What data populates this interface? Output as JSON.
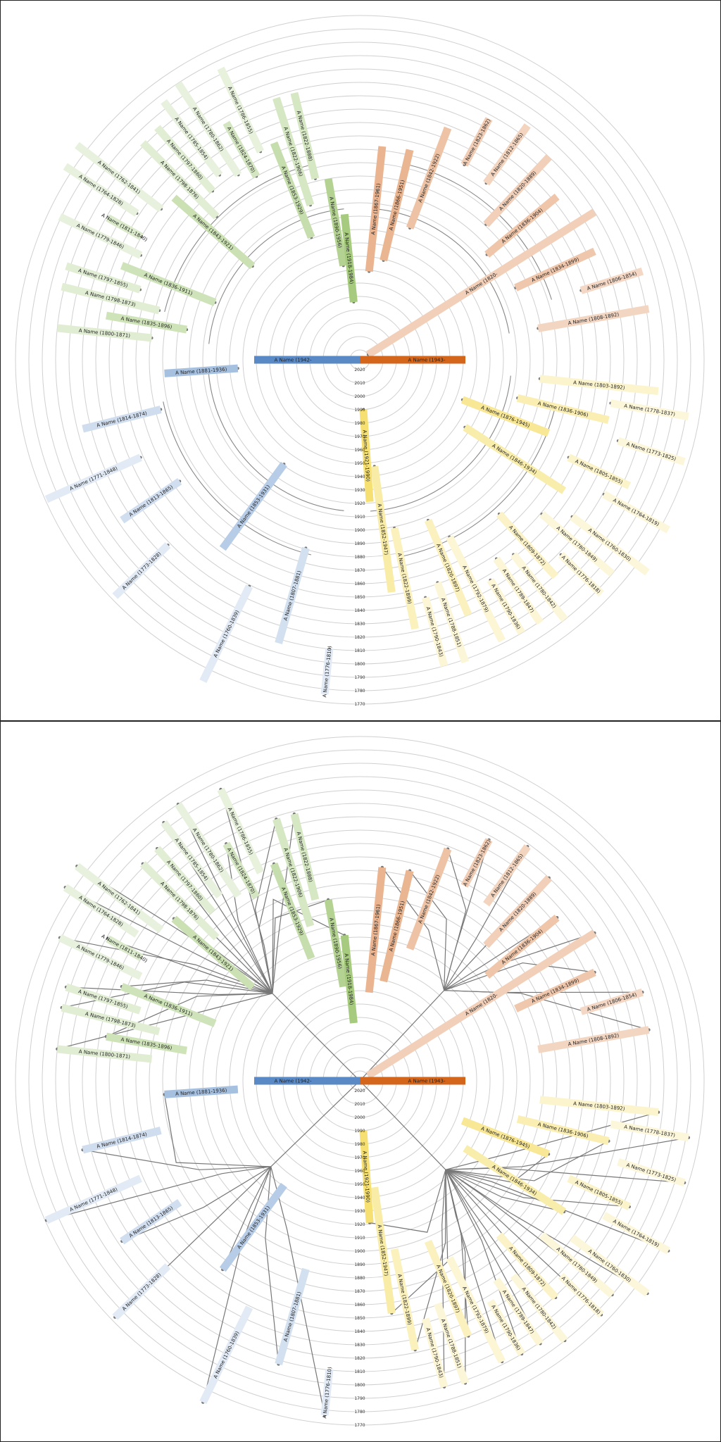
{
  "colors": {
    "orange": "#d4661c",
    "yellow": "#f1d232",
    "blue": "#5a8ac6",
    "green": "#7cb342",
    "ring": "#d0d0d0",
    "link": "#777777"
  },
  "chart_data": [
    {
      "type": "radial-timeline",
      "panel": "top",
      "link_style": "arcs",
      "ring_labels": [
        "2020",
        "2010",
        "2000",
        "1990",
        "1980",
        "1970",
        "1960",
        "1950",
        "1940",
        "1930",
        "1920",
        "1910",
        "1900",
        "1890",
        "1880",
        "1870",
        "1860",
        "1850",
        "1840",
        "1830",
        "1820",
        "1810",
        "1800",
        "1790",
        "1780",
        "1770"
      ],
      "root": [
        {
          "label": "A Name (1942-",
          "branch": "blue"
        },
        {
          "label": "A Name (1943-",
          "branch": "orange"
        }
      ],
      "entries": [
        {
          "label": "A Name (1800-1871)",
          "branch": "green"
        },
        {
          "label": "A Name (1835-1896)",
          "branch": "green"
        },
        {
          "label": "A Name (1798-1873)",
          "branch": "green"
        },
        {
          "label": "A Name (1797-1855)",
          "branch": "green"
        },
        {
          "label": "A Name (1836-1911)",
          "branch": "green"
        },
        {
          "label": "A Name (1779-1846)",
          "branch": "green"
        },
        {
          "label": "A Name (1811-1840)",
          "branch": "green"
        },
        {
          "label": "A Name (1764-1828)",
          "branch": "green"
        },
        {
          "label": "A Name (1762-1841)",
          "branch": "green"
        },
        {
          "label": "A Name (1843-1921)",
          "branch": "green"
        },
        {
          "label": "A Name (1798-1876)",
          "branch": "green"
        },
        {
          "label": "A Name (1797-1860)",
          "branch": "green"
        },
        {
          "label": "A Name (1785-1854)",
          "branch": "green"
        },
        {
          "label": "A Name (1780-1862)",
          "branch": "green"
        },
        {
          "label": "A Name (1824-1870)",
          "branch": "green"
        },
        {
          "label": "A Name (1786-1855)",
          "branch": "green"
        },
        {
          "label": "A Name (1853-1929)",
          "branch": "green"
        },
        {
          "label": "A Name (1822-1906)",
          "branch": "green"
        },
        {
          "label": "A Name (1822-1888)",
          "branch": "green"
        },
        {
          "label": "A Name (1890-1956)",
          "branch": "green"
        },
        {
          "label": "A Name (1918-1984)",
          "branch": "green"
        },
        {
          "label": "A Name (1867-1961)",
          "branch": "orange"
        },
        {
          "label": "A Name (1866-1951)",
          "branch": "orange"
        },
        {
          "label": "A Name (1842-1922)",
          "branch": "orange"
        },
        {
          "label": "A Name (1823-1862)",
          "branch": "orange"
        },
        {
          "label": "A Name (1812-1865)",
          "branch": "orange"
        },
        {
          "label": "A Name (1820-1889)",
          "branch": "orange"
        },
        {
          "label": "A Name (1836-1904)",
          "branch": "orange"
        },
        {
          "label": "A Name (1820-",
          "branch": "orange"
        },
        {
          "label": "A Name (1834-1899)",
          "branch": "orange"
        },
        {
          "label": "A Name (1806-1854)",
          "branch": "orange"
        },
        {
          "label": "A Name (1808-1892)",
          "branch": "orange"
        },
        {
          "label": "A Name (1803-1892)",
          "branch": "yellow"
        },
        {
          "label": "A Name (1778-1837)",
          "branch": "yellow"
        },
        {
          "label": "A Name (1836-1906)",
          "branch": "yellow"
        },
        {
          "label": "A Name (1773-1825)",
          "branch": "yellow"
        },
        {
          "label": "A Name (1876-1945)",
          "branch": "yellow"
        },
        {
          "label": "A Name (1805-1855)",
          "branch": "yellow"
        },
        {
          "label": "A Name (1764-1819)",
          "branch": "yellow"
        },
        {
          "label": "A Name (1846-1934)",
          "branch": "yellow"
        },
        {
          "label": "A Name (1760-1830)",
          "branch": "yellow"
        },
        {
          "label": "A Name (1780-1849)",
          "branch": "yellow"
        },
        {
          "label": "A Name (1776-1818)",
          "branch": "yellow"
        },
        {
          "label": "A Name (1809-1872)",
          "branch": "yellow"
        },
        {
          "label": "A Name (1780-1842)",
          "branch": "yellow"
        },
        {
          "label": "A Name (1789-1847)",
          "branch": "yellow"
        },
        {
          "label": "A Name (1790-1836)",
          "branch": "yellow"
        },
        {
          "label": "A Name (1792-1879)",
          "branch": "yellow"
        },
        {
          "label": "A Name (1820-1897)",
          "branch": "yellow"
        },
        {
          "label": "A Name (1788-1851)",
          "branch": "yellow"
        },
        {
          "label": "A Name (1790-1843)",
          "branch": "yellow"
        },
        {
          "label": "A Name (1822-1899)",
          "branch": "yellow"
        },
        {
          "label": "A Name (1852-1947)",
          "branch": "yellow"
        },
        {
          "label": "A Name (1921-1990)",
          "branch": "yellow"
        },
        {
          "label": "A Name (1776-1810)",
          "branch": "blue"
        },
        {
          "label": "A Name (1807-1881)",
          "branch": "blue"
        },
        {
          "label": "A Name (1760-1839)",
          "branch": "blue"
        },
        {
          "label": "A Name (1853-1931)",
          "branch": "blue"
        },
        {
          "label": "A Name (1773-1828)",
          "branch": "blue"
        },
        {
          "label": "A Name (1813-1865)",
          "branch": "blue"
        },
        {
          "label": "A Name (1771-1848)",
          "branch": "blue"
        },
        {
          "label": "A Name (1814-1874)",
          "branch": "blue"
        },
        {
          "label": "A Name (1881-1936)",
          "branch": "blue"
        }
      ]
    },
    {
      "type": "radial-timeline",
      "panel": "bottom",
      "link_style": "straight",
      "ring_labels": [
        "2020",
        "2010",
        "2000",
        "1990",
        "1980",
        "1970",
        "1960",
        "1950",
        "1940",
        "1930",
        "1920",
        "1910",
        "1900",
        "1890",
        "1880",
        "1870",
        "1860",
        "1850",
        "1840",
        "1830",
        "1820",
        "1810",
        "1800",
        "1790",
        "1780",
        "1770"
      ],
      "root": [
        {
          "label": "A Name (1942-",
          "branch": "blue"
        },
        {
          "label": "A Name (1943-",
          "branch": "orange"
        }
      ],
      "entries": [
        {
          "label": "A Name (1800-1871)",
          "branch": "green"
        },
        {
          "label": "A Name (1835-1896)",
          "branch": "green"
        },
        {
          "label": "A Name (1798-1873)",
          "branch": "green"
        },
        {
          "label": "A Name (1797-1855)",
          "branch": "green"
        },
        {
          "label": "A Name (1836-1911)",
          "branch": "green"
        },
        {
          "label": "A Name (1779-1846)",
          "branch": "green"
        },
        {
          "label": "A Name (1811-1840)",
          "branch": "green"
        },
        {
          "label": "A Name (1764-1828)",
          "branch": "green"
        },
        {
          "label": "A Name (1762-1841)",
          "branch": "green"
        },
        {
          "label": "A Name (1843-1921)",
          "branch": "green"
        },
        {
          "label": "A Name (1798-1876)",
          "branch": "green"
        },
        {
          "label": "A Name (1797-1860)",
          "branch": "green"
        },
        {
          "label": "A Name (1785-1854)",
          "branch": "green"
        },
        {
          "label": "A Name (1780-1862)",
          "branch": "green"
        },
        {
          "label": "A Name (1824-1870)",
          "branch": "green"
        },
        {
          "label": "A Name (1786-1855)",
          "branch": "green"
        },
        {
          "label": "A Name (1853-1929)",
          "branch": "green"
        },
        {
          "label": "A Name (1822-1906)",
          "branch": "green"
        },
        {
          "label": "A Name (1822-1888)",
          "branch": "green"
        },
        {
          "label": "A Name (1890-1956)",
          "branch": "green"
        },
        {
          "label": "A Name (1918-1984)",
          "branch": "green"
        },
        {
          "label": "A Name (1867-1961)",
          "branch": "orange"
        },
        {
          "label": "A Name (1866-1951)",
          "branch": "orange"
        },
        {
          "label": "A Name (1842-1922)",
          "branch": "orange"
        },
        {
          "label": "A Name (1823-1862)",
          "branch": "orange"
        },
        {
          "label": "A Name (1812-1865)",
          "branch": "orange"
        },
        {
          "label": "A Name (1820-1889)",
          "branch": "orange"
        },
        {
          "label": "A Name (1836-1904)",
          "branch": "orange"
        },
        {
          "label": "A Name (1820-",
          "branch": "orange"
        },
        {
          "label": "A Name (1834-1899)",
          "branch": "orange"
        },
        {
          "label": "A Name (1806-1854)",
          "branch": "orange"
        },
        {
          "label": "A Name (1808-1892)",
          "branch": "orange"
        },
        {
          "label": "A Name (1803-1892)",
          "branch": "yellow"
        },
        {
          "label": "A Name (1778-1837)",
          "branch": "yellow"
        },
        {
          "label": "A Name (1836-1906)",
          "branch": "yellow"
        },
        {
          "label": "A Name (1773-1825)",
          "branch": "yellow"
        },
        {
          "label": "A Name (1876-1945)",
          "branch": "yellow"
        },
        {
          "label": "A Name (1805-1855)",
          "branch": "yellow"
        },
        {
          "label": "A Name (1764-1819)",
          "branch": "yellow"
        },
        {
          "label": "A Name (1846-1934)",
          "branch": "yellow"
        },
        {
          "label": "A Name (1760-1830)",
          "branch": "yellow"
        },
        {
          "label": "A Name (1780-1849)",
          "branch": "yellow"
        },
        {
          "label": "A Name (1776-1818)",
          "branch": "yellow"
        },
        {
          "label": "A Name (1809-1872)",
          "branch": "yellow"
        },
        {
          "label": "A Name (1780-1842)",
          "branch": "yellow"
        },
        {
          "label": "A Name (1789-1847)",
          "branch": "yellow"
        },
        {
          "label": "A Name (1790-1836)",
          "branch": "yellow"
        },
        {
          "label": "A Name (1792-1879)",
          "branch": "yellow"
        },
        {
          "label": "A Name (1820-1897)",
          "branch": "yellow"
        },
        {
          "label": "A Name (1788-1851)",
          "branch": "yellow"
        },
        {
          "label": "A Name (1790-1843)",
          "branch": "yellow"
        },
        {
          "label": "A Name (1822-1899)",
          "branch": "yellow"
        },
        {
          "label": "A Name (1852-1947)",
          "branch": "yellow"
        },
        {
          "label": "A Name (1921-1990)",
          "branch": "yellow"
        },
        {
          "label": "A Name (1776-1810)",
          "branch": "blue"
        },
        {
          "label": "A Name (1807-1881)",
          "branch": "blue"
        },
        {
          "label": "A Name (1760-1839)",
          "branch": "blue"
        },
        {
          "label": "A Name (1853-1931)",
          "branch": "blue"
        },
        {
          "label": "A Name (1773-1828)",
          "branch": "blue"
        },
        {
          "label": "A Name (1813-1865)",
          "branch": "blue"
        },
        {
          "label": "A Name (1771-1848)",
          "branch": "blue"
        },
        {
          "label": "A Name (1814-1874)",
          "branch": "blue"
        },
        {
          "label": "A Name (1881-1936)",
          "branch": "blue"
        }
      ]
    }
  ]
}
